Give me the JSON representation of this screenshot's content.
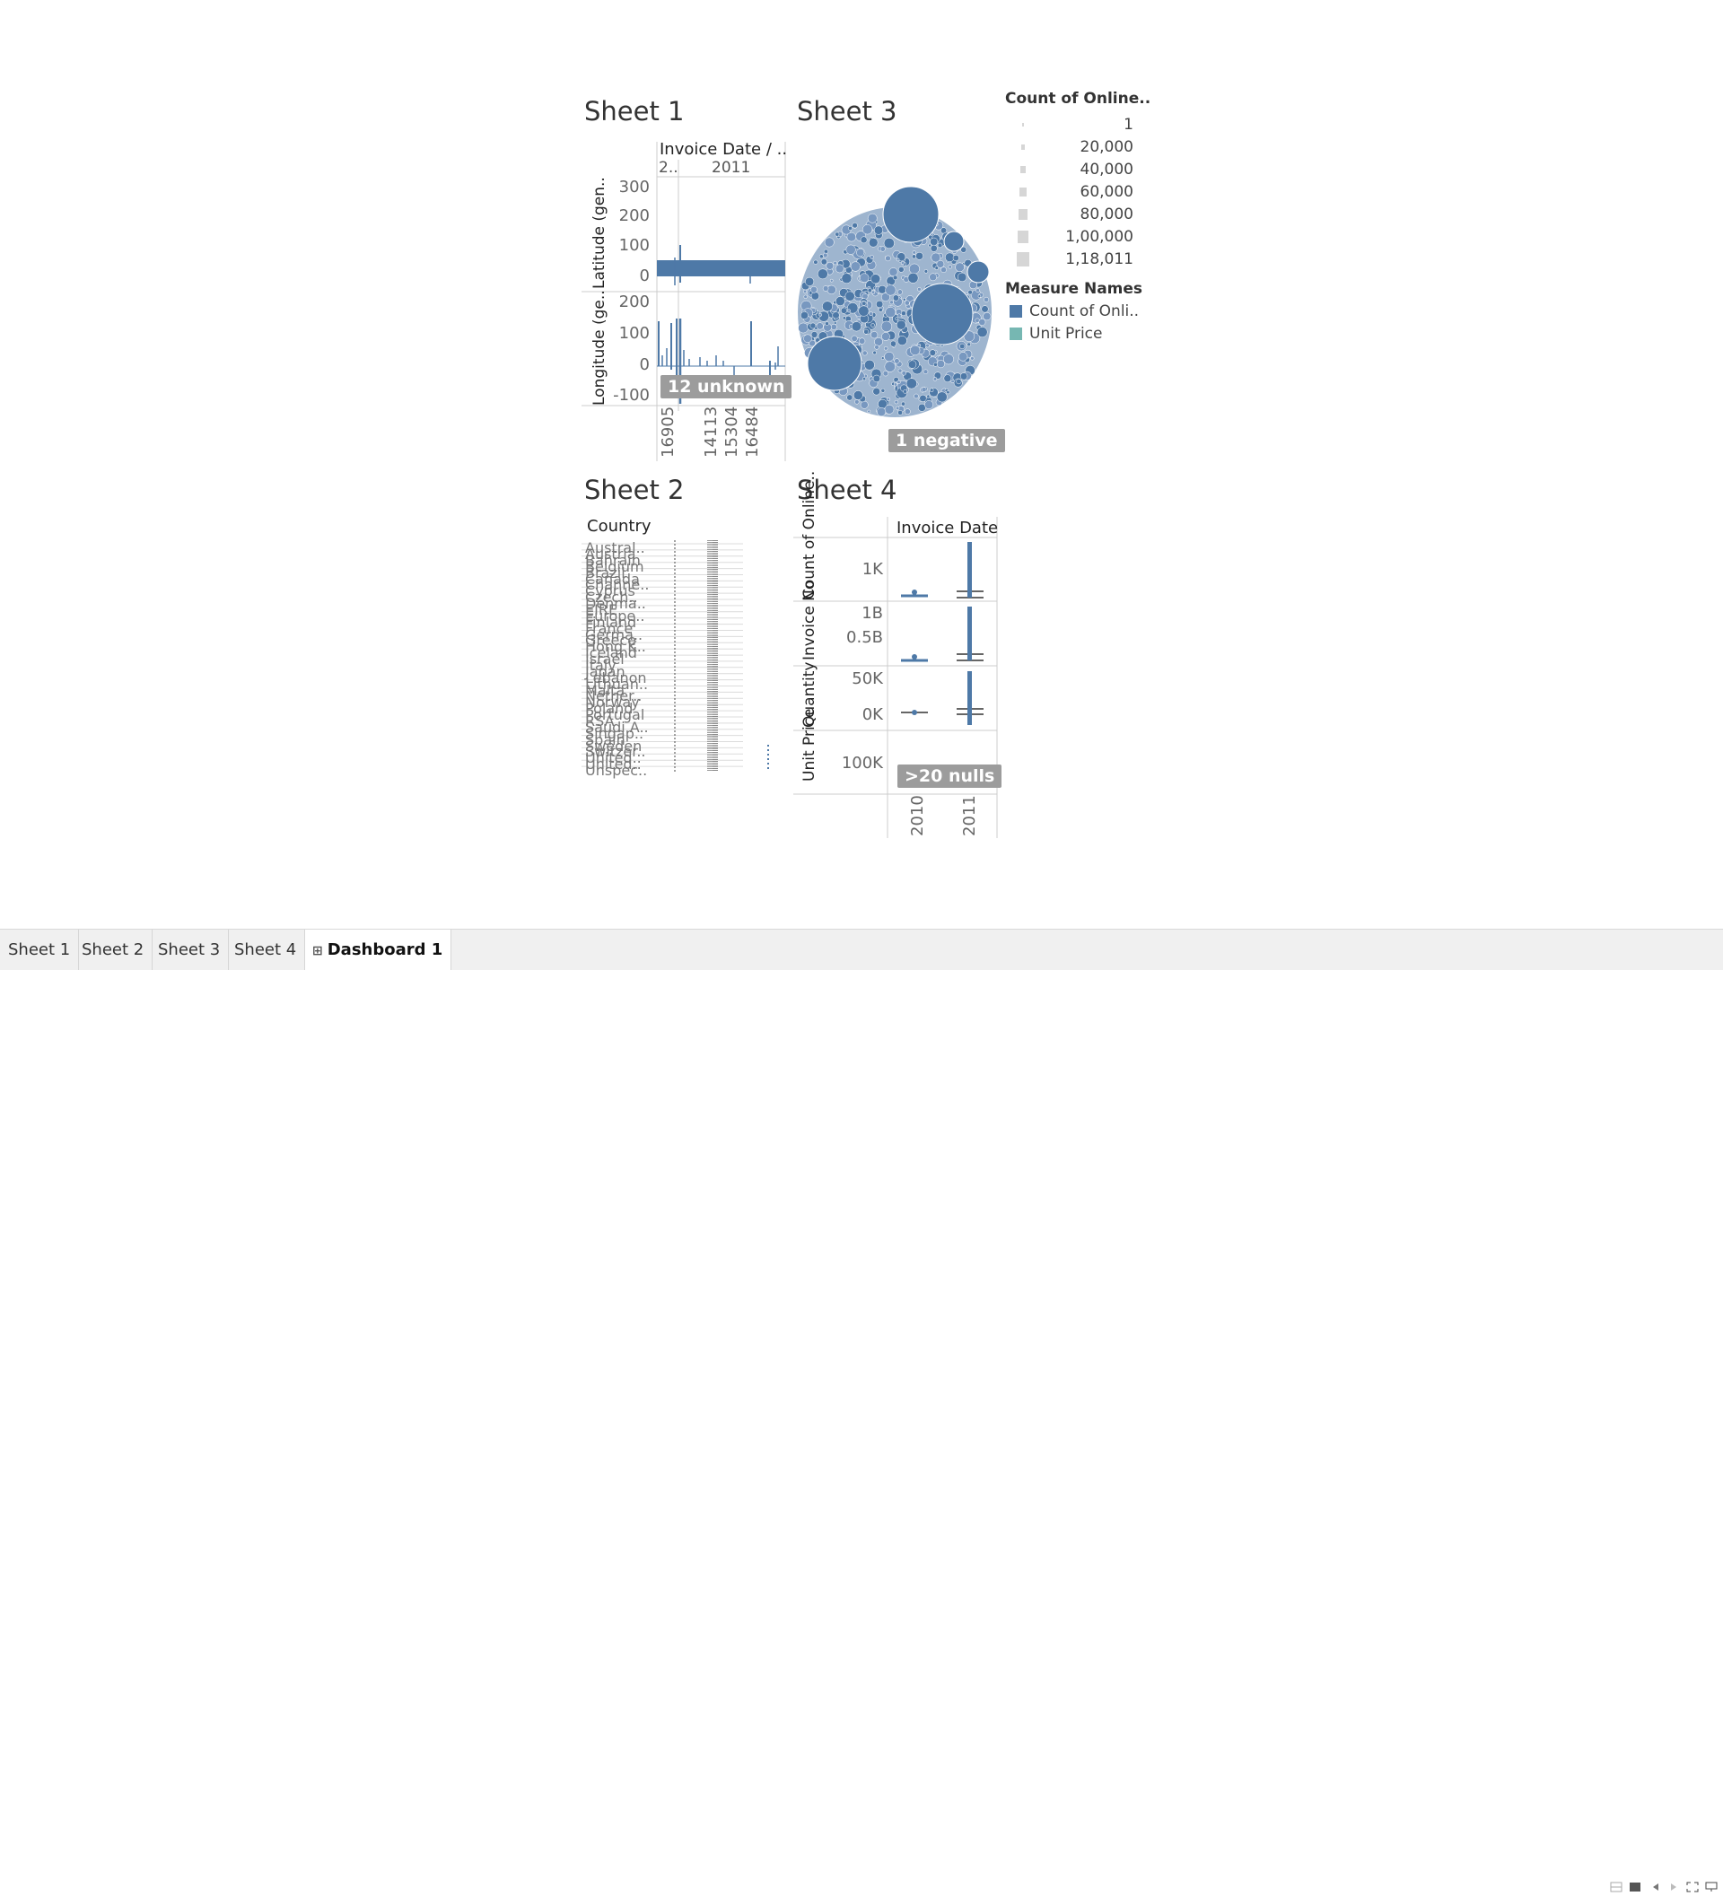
{
  "sheet1": {
    "title": "Sheet 1",
    "column_header": "Invoice Date / ..",
    "year_labels": [
      "2..",
      "2011"
    ],
    "row_labels": [
      "Latitude (gen..",
      "Longitude (ge.."
    ],
    "lat_ticks": [
      "300",
      "200",
      "100",
      "0"
    ],
    "lon_ticks": [
      "200",
      "100",
      "0",
      "-100"
    ],
    "x_labels": [
      "16905",
      "14113",
      "15304",
      "16484"
    ],
    "badge": "12 unknown"
  },
  "sheet3": {
    "title": "Sheet 3",
    "badge": "1 negative",
    "legend_size_title": "Count of Online..",
    "size_items": [
      "1",
      "20,000",
      "40,000",
      "60,000",
      "80,000",
      "1,00,000",
      "1,18,011"
    ],
    "legend_color_title": "Measure Names",
    "color_items": [
      {
        "label": "Count of Onli..",
        "color": "#4e79a7"
      },
      {
        "label": "Unit Price",
        "color": "#76b7b2"
      }
    ]
  },
  "sheet2": {
    "title": "Sheet 2",
    "column_header": "Country",
    "countries": [
      "Austral..",
      "Austria",
      "Bahrain",
      "Belgium",
      "Brazil",
      "Canada",
      "Channe..",
      "Cyprus",
      "Czech..",
      "Denma..",
      "EIRE",
      "Europe..",
      "Finland",
      "France",
      "Germa..",
      "Greece",
      "Hong K..",
      "Iceland",
      "Israel",
      "Italy",
      "Japan",
      "Lebanon",
      "Lithuan..",
      "Malta",
      "Nether..",
      "Norway",
      "Poland",
      "Portugal",
      "RSA",
      "Saudi A..",
      "Singap..",
      "Spain",
      "Sweden",
      "Switzer..",
      "United..",
      "United..",
      "Unspec.."
    ]
  },
  "sheet4": {
    "title": "Sheet 4",
    "column_header": "Invoice Date",
    "rows": [
      {
        "label": "Count of Online..",
        "ticks": [
          "1K"
        ]
      },
      {
        "label": "Invoice No",
        "ticks": [
          "1B",
          "0.5B"
        ]
      },
      {
        "label": "Quantity",
        "ticks": [
          "50K",
          "0K"
        ]
      },
      {
        "label": "Unit Price",
        "ticks": [
          "100K"
        ]
      }
    ],
    "x_labels": [
      "2010",
      "2011"
    ],
    "badge": ">20 nulls"
  },
  "tabs": [
    "Sheet 1",
    "Sheet 2",
    "Sheet 3",
    "Sheet 4",
    "Dashboard 1"
  ],
  "active_tab": "Dashboard 1",
  "colors": {
    "primary": "#4e79a7",
    "secondary": "#76b7b2",
    "badge": "#9c9c9c"
  }
}
